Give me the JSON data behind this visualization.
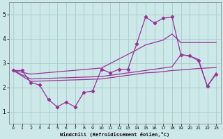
{
  "xlabel": "Windchill (Refroidissement éolien,°C)",
  "background_color": "#cce8e8",
  "grid_color": "#aacccc",
  "line_color": "#993399",
  "ylim": [
    0.5,
    5.5
  ],
  "xlim": [
    -0.5,
    23.5
  ],
  "yticks": [
    1,
    2,
    3,
    4,
    5
  ],
  "xticks": [
    0,
    1,
    2,
    3,
    4,
    5,
    6,
    7,
    8,
    9,
    10,
    11,
    12,
    13,
    14,
    15,
    16,
    17,
    18,
    19,
    20,
    21,
    22,
    23
  ],
  "series": {
    "line1_jagged": {
      "x": [
        0,
        1,
        2,
        3,
        4,
        5,
        6,
        7,
        8,
        9,
        10,
        11,
        12,
        13,
        14,
        15,
        16,
        17,
        18,
        19,
        20,
        21,
        22,
        23
      ],
      "y": [
        2.7,
        2.7,
        2.2,
        2.1,
        1.5,
        1.2,
        1.4,
        1.2,
        1.8,
        1.85,
        2.75,
        2.6,
        2.75,
        2.75,
        3.8,
        4.9,
        4.65,
        4.85,
        4.9,
        3.35,
        3.3,
        3.1,
        2.05,
        2.55
      ],
      "marker": true
    },
    "line2_upper": {
      "x": [
        0,
        2,
        10,
        14,
        15,
        16,
        17,
        18,
        19,
        20,
        21,
        22,
        23
      ],
      "y": [
        2.7,
        2.55,
        2.8,
        3.55,
        3.75,
        3.85,
        3.95,
        4.2,
        3.85,
        3.85,
        3.85,
        3.85,
        3.85
      ],
      "marker": false
    },
    "line3_mid": {
      "x": [
        0,
        2,
        10,
        14,
        15,
        16,
        17,
        18,
        19,
        20,
        21,
        22,
        23
      ],
      "y": [
        2.7,
        2.35,
        2.45,
        2.65,
        2.7,
        2.75,
        2.8,
        2.85,
        3.35,
        3.3,
        3.15,
        2.05,
        2.6
      ],
      "marker": false
    },
    "line4_lower": {
      "x": [
        0,
        2,
        10,
        14,
        15,
        16,
        17,
        18,
        19,
        20,
        21,
        22,
        23
      ],
      "y": [
        2.7,
        2.25,
        2.35,
        2.55,
        2.6,
        2.62,
        2.65,
        2.7,
        2.72,
        2.75,
        2.78,
        2.8,
        2.82
      ],
      "marker": false
    }
  }
}
